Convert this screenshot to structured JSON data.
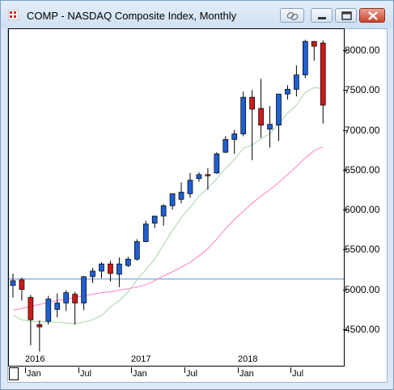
{
  "window": {
    "title": "COMP - NASDAQ Composite Index, Monthly",
    "colors": {
      "bull": "#1f5fd0",
      "bear": "#cc1a1a",
      "ma_short": "#b5dbb5",
      "ma_long": "#ff80c8",
      "hline": "#5b8fd6"
    }
  },
  "toolbar": {
    "link_icon": "link-icon",
    "minimize_icon": "minimize-icon",
    "maximize_icon": "maximize-icon",
    "close_icon": "close-icon"
  },
  "chart_data": {
    "type": "candlestick",
    "y_axis": {
      "min": 4150,
      "max": 8300,
      "ticks": [
        "8000.00",
        "7500.00",
        "7000.00",
        "6500.00",
        "6000.00",
        "5500.00",
        "5000.00",
        "4500.00"
      ],
      "tick_values": [
        8000,
        7500,
        7000,
        6500,
        6000,
        5500,
        5000,
        4500
      ]
    },
    "x_axis": {
      "year_labels": [
        {
          "label": "2016",
          "index": 2
        },
        {
          "label": "2017",
          "index": 14
        },
        {
          "label": "2018",
          "index": 26
        }
      ],
      "month_labels": [
        {
          "label": "Jan",
          "index": 2
        },
        {
          "label": "Jul",
          "index": 8
        },
        {
          "label": "Jan",
          "index": 14
        },
        {
          "label": "Jul",
          "index": 20
        },
        {
          "label": "Jan",
          "index": 26
        },
        {
          "label": "Jul",
          "index": 32
        }
      ]
    },
    "horizontal_line": 5130,
    "candles": [
      {
        "o": 5050,
        "h": 5200,
        "l": 4900,
        "c": 5110
      },
      {
        "o": 5120,
        "h": 5150,
        "l": 4860,
        "c": 5000
      },
      {
        "o": 4900,
        "h": 4930,
        "l": 4300,
        "c": 4620
      },
      {
        "o": 4560,
        "h": 4610,
        "l": 4220,
        "c": 4530
      },
      {
        "o": 4600,
        "h": 4920,
        "l": 4560,
        "c": 4880
      },
      {
        "o": 4750,
        "h": 4950,
        "l": 4650,
        "c": 4830
      },
      {
        "o": 4830,
        "h": 4990,
        "l": 4730,
        "c": 4960
      },
      {
        "o": 4940,
        "h": 4970,
        "l": 4560,
        "c": 4830
      },
      {
        "o": 4830,
        "h": 5170,
        "l": 4740,
        "c": 5160
      },
      {
        "o": 5160,
        "h": 5270,
        "l": 5080,
        "c": 5230
      },
      {
        "o": 5230,
        "h": 5340,
        "l": 5140,
        "c": 5320
      },
      {
        "o": 5320,
        "h": 5360,
        "l": 5100,
        "c": 5200
      },
      {
        "o": 5190,
        "h": 5400,
        "l": 5030,
        "c": 5320
      },
      {
        "o": 5300,
        "h": 5410,
        "l": 5280,
        "c": 5380
      },
      {
        "o": 5380,
        "h": 5630,
        "l": 5360,
        "c": 5600
      },
      {
        "o": 5600,
        "h": 5860,
        "l": 5590,
        "c": 5820
      },
      {
        "o": 5830,
        "h": 5920,
        "l": 5770,
        "c": 5920
      },
      {
        "o": 5920,
        "h": 6070,
        "l": 5800,
        "c": 6050
      },
      {
        "o": 6050,
        "h": 6200,
        "l": 6000,
        "c": 6200
      },
      {
        "o": 6130,
        "h": 6340,
        "l": 6080,
        "c": 6220
      },
      {
        "o": 6200,
        "h": 6460,
        "l": 6150,
        "c": 6370
      },
      {
        "o": 6390,
        "h": 6470,
        "l": 6350,
        "c": 6440
      },
      {
        "o": 6440,
        "h": 6520,
        "l": 6250,
        "c": 6430
      },
      {
        "o": 6460,
        "h": 6720,
        "l": 6450,
        "c": 6700
      },
      {
        "o": 6720,
        "h": 6920,
        "l": 6710,
        "c": 6880
      },
      {
        "o": 6880,
        "h": 7000,
        "l": 6700,
        "c": 6950
      },
      {
        "o": 6950,
        "h": 7480,
        "l": 6920,
        "c": 7410
      },
      {
        "o": 7410,
        "h": 7500,
        "l": 6620,
        "c": 7260
      },
      {
        "o": 7270,
        "h": 7640,
        "l": 6900,
        "c": 7060
      },
      {
        "o": 7010,
        "h": 7300,
        "l": 6780,
        "c": 7070
      },
      {
        "o": 7060,
        "h": 7440,
        "l": 6860,
        "c": 7450
      },
      {
        "o": 7450,
        "h": 7560,
        "l": 7380,
        "c": 7510
      },
      {
        "o": 7510,
        "h": 7810,
        "l": 7420,
        "c": 7690
      },
      {
        "o": 7690,
        "h": 8130,
        "l": 7650,
        "c": 8110
      },
      {
        "o": 8110,
        "h": 8100,
        "l": 7870,
        "c": 8050
      },
      {
        "o": 8090,
        "h": 8120,
        "l": 7080,
        "c": 7310
      }
    ],
    "ma_short": [
      4680,
      4620,
      4600,
      4600,
      4590,
      4590,
      4580,
      4570,
      4590,
      4620,
      4670,
      4780,
      4860,
      4970,
      5120,
      5250,
      5380,
      5560,
      5740,
      5900,
      6030,
      6170,
      6270,
      6390,
      6520,
      6630,
      6770,
      6810,
      6890,
      6950,
      7080,
      7210,
      7310,
      7470,
      7530,
      7520
    ],
    "ma_long": [
      4740,
      4760,
      4790,
      4810,
      4840,
      4860,
      4880,
      4900,
      4920,
      4940,
      4960,
      4970,
      4990,
      5010,
      5030,
      5060,
      5110,
      5170,
      5220,
      5280,
      5340,
      5420,
      5510,
      5630,
      5760,
      5880,
      5980,
      6080,
      6170,
      6250,
      6340,
      6440,
      6540,
      6650,
      6740,
      6790
    ]
  }
}
